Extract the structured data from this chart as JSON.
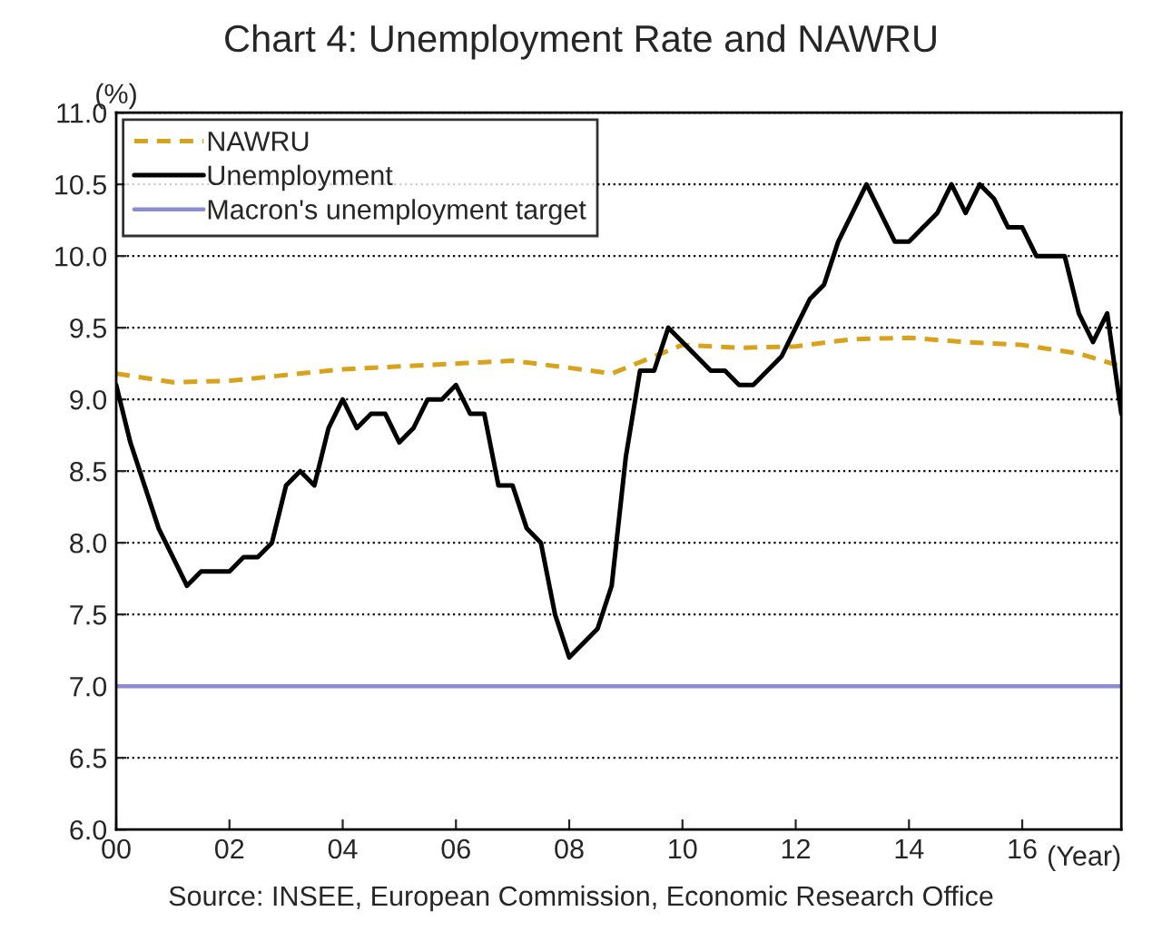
{
  "chart_data": {
    "type": "line",
    "title": "Chart 4: Unemployment Rate and NAWRU",
    "ylabel": "(%)",
    "xlabel": "(Year)",
    "annotations": [
      "Source: INSEE, European Commission, Economic Research Office"
    ],
    "xlim": [
      2000,
      2017.75
    ],
    "xticks": [
      {
        "value": 2000,
        "label": "00"
      },
      {
        "value": 2002,
        "label": "02"
      },
      {
        "value": 2004,
        "label": "04"
      },
      {
        "value": 2006,
        "label": "06"
      },
      {
        "value": 2008,
        "label": "08"
      },
      {
        "value": 2010,
        "label": "10"
      },
      {
        "value": 2012,
        "label": "12"
      },
      {
        "value": 2014,
        "label": "14"
      },
      {
        "value": 2016,
        "label": "16"
      }
    ],
    "ylim": [
      6.0,
      11.0
    ],
    "yticks": [
      {
        "value": 6.0,
        "label": "6.0"
      },
      {
        "value": 6.5,
        "label": "6.5"
      },
      {
        "value": 7.0,
        "label": "7.0"
      },
      {
        "value": 7.5,
        "label": "7.5"
      },
      {
        "value": 8.0,
        "label": "8.0"
      },
      {
        "value": 8.5,
        "label": "8.5"
      },
      {
        "value": 9.0,
        "label": "9.0"
      },
      {
        "value": 9.5,
        "label": "9.5"
      },
      {
        "value": 10.0,
        "label": "10.0"
      },
      {
        "value": 10.5,
        "label": "10.5"
      },
      {
        "value": 11.0,
        "label": "11.0"
      }
    ],
    "grid": "y",
    "legend": "top left",
    "marker": "none",
    "series": [
      {
        "name": "NAWRU",
        "color": "#d9a21b",
        "line_style": "dashed",
        "x": [
          2000,
          2001,
          2002,
          2003,
          2004,
          2005,
          2006,
          2007,
          2008,
          2008.75,
          2009.5,
          2010,
          2011,
          2012,
          2013,
          2014,
          2015,
          2016,
          2017,
          2017.75
        ],
        "values": [
          9.18,
          9.12,
          9.13,
          9.17,
          9.21,
          9.23,
          9.25,
          9.27,
          9.22,
          9.18,
          9.3,
          9.38,
          9.36,
          9.37,
          9.42,
          9.43,
          9.4,
          9.38,
          9.32,
          9.23
        ]
      },
      {
        "name": "Unemployment",
        "color": "#000000",
        "line_style": "solid",
        "x": [
          2000,
          2000.25,
          2000.5,
          2000.75,
          2001,
          2001.25,
          2001.5,
          2001.75,
          2002,
          2002.25,
          2002.5,
          2002.75,
          2003,
          2003.25,
          2003.5,
          2003.75,
          2004,
          2004.25,
          2004.5,
          2004.75,
          2005,
          2005.25,
          2005.5,
          2005.75,
          2006,
          2006.25,
          2006.5,
          2006.75,
          2007,
          2007.25,
          2007.5,
          2007.75,
          2008,
          2008.25,
          2008.5,
          2008.75,
          2009,
          2009.25,
          2009.5,
          2009.75,
          2010,
          2010.25,
          2010.5,
          2010.75,
          2011,
          2011.25,
          2011.5,
          2011.75,
          2012,
          2012.25,
          2012.5,
          2012.75,
          2013,
          2013.25,
          2013.5,
          2013.75,
          2014,
          2014.25,
          2014.5,
          2014.75,
          2015,
          2015.25,
          2015.5,
          2015.75,
          2016,
          2016.25,
          2016.5,
          2016.75,
          2017,
          2017.25,
          2017.5,
          2017.75
        ],
        "values": [
          9.1,
          8.7,
          8.4,
          8.1,
          7.9,
          7.7,
          7.8,
          7.8,
          7.8,
          7.9,
          7.9,
          8.0,
          8.4,
          8.5,
          8.4,
          8.8,
          9.0,
          8.8,
          8.9,
          8.9,
          8.7,
          8.8,
          9.0,
          9.0,
          9.1,
          8.9,
          8.9,
          8.4,
          8.4,
          8.1,
          8.0,
          7.5,
          7.2,
          7.3,
          7.4,
          7.7,
          8.6,
          9.2,
          9.2,
          9.5,
          9.4,
          9.3,
          9.2,
          9.2,
          9.1,
          9.1,
          9.2,
          9.3,
          9.5,
          9.7,
          9.8,
          10.1,
          10.3,
          10.5,
          10.3,
          10.1,
          10.1,
          10.2,
          10.3,
          10.5,
          10.3,
          10.5,
          10.4,
          10.2,
          10.2,
          10.0,
          10.0,
          10.0,
          9.6,
          9.4,
          9.6,
          8.9
        ]
      }
    ],
    "ref_lines": [
      {
        "axis": "y",
        "value": 7.0,
        "label": "Macron's unemployment target",
        "color": "#8c8cd2",
        "line_style": "solid"
      }
    ]
  }
}
